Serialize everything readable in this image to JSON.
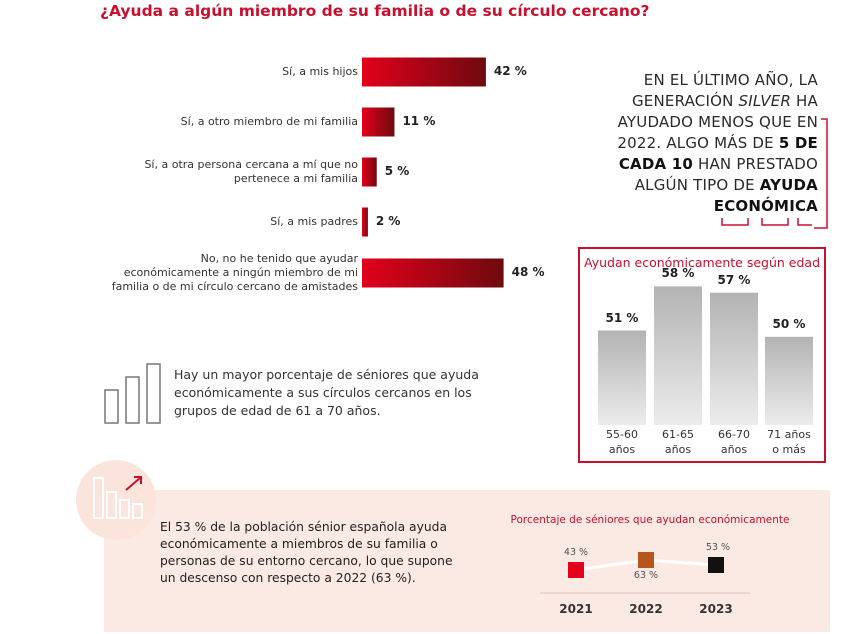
{
  "title": "¿Ayuda a algún miembro de su familia o de su círculo cercano?",
  "callout": {
    "line1": "EN EL ÚLTIMO AÑO, LA",
    "line2a": "GENERACIÓN ",
    "line2b": "SILVER",
    "line2c": " HA",
    "line3": "AYUDADO MENOS QUE EN",
    "line4a": "2022. ALGO MÁS DE ",
    "line4b": "5 DE",
    "line5a": "CADA 10",
    "line5b": " HAN PRESTADO",
    "line6a": "ALGÚN TIPO DE ",
    "line6b": "AYUDA",
    "line7": "ECONÓMICA"
  },
  "insight": "Hay un mayor porcentaje de séniores que ayuda económicamente a sus círculos cercanos en los grupos de edad de 61 a 70 años.",
  "summary": "El 53 % de la población sénior española ayuda económicamente a miembros de su familia o personas de su entorno cercano, lo que supone un descenso con respecto a 2022 (63 %).",
  "chart_data": [
    {
      "type": "bar",
      "orientation": "horizontal",
      "categories": [
        [
          "Sí, a mis hijos"
        ],
        [
          "Sí, a otro miembro de mi familia"
        ],
        [
          "Sí, a otra persona cercana a mí que no",
          "pertenece a mi familia"
        ],
        [
          "Sí, a mis padres"
        ],
        [
          "No, no he tenido que ayudar",
          "económicamente a ningún miembro de mi",
          "familia o de mi círculo cercano de amistades"
        ]
      ],
      "values": [
        42,
        11,
        5,
        2,
        48
      ],
      "value_labels": [
        "42 %",
        "11 %",
        "5 %",
        "2 %",
        "48 %"
      ],
      "title": "¿Ayuda a algún miembro de su familia o de su círculo cercano?",
      "colors": [
        "#e3001b",
        "#6e0a0f"
      ]
    },
    {
      "type": "bar",
      "title": "Ayudan económicamente según edad",
      "categories": [
        [
          "55-60",
          "años"
        ],
        [
          "61-65",
          "años"
        ],
        [
          "66-70",
          "años"
        ],
        [
          "71 años",
          "o más"
        ]
      ],
      "values": [
        51,
        58,
        57,
        50
      ],
      "value_labels": [
        "51 %",
        "58 %",
        "57 %",
        "50 %"
      ],
      "colors": [
        "#b0b0b0",
        "#e4e4e4"
      ]
    },
    {
      "type": "scatter",
      "title": "Porcentaje de séniores que ayudan económicamente",
      "x": [
        "2021",
        "2022",
        "2023"
      ],
      "values": [
        43,
        63,
        53
      ],
      "value_labels": [
        "43 %",
        "63 %",
        "53 %"
      ],
      "colors": [
        "#e3001b",
        "#b5561d",
        "#111111"
      ]
    }
  ]
}
